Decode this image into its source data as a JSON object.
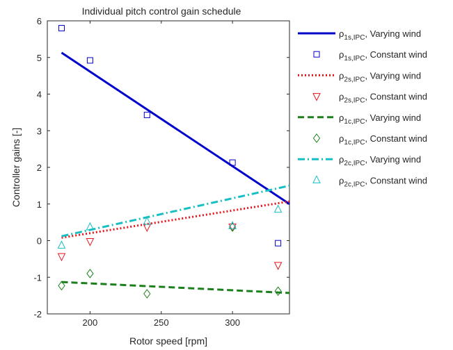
{
  "chart_data": {
    "type": "line",
    "title": "Individual pitch control gain schedule",
    "xlabel": "Rotor speed [rpm]",
    "ylabel": "Controller gains [-]",
    "xlim": [
      170,
      340
    ],
    "ylim": [
      -2,
      6
    ],
    "xticks": [
      "200",
      "250",
      "300"
    ],
    "xtick_values": [
      200,
      250,
      300
    ],
    "yticks": [
      "-2",
      "-1",
      "0",
      "1",
      "2",
      "3",
      "4",
      "5",
      "6"
    ],
    "ytick_values": [
      -2,
      -1,
      0,
      1,
      2,
      3,
      4,
      5,
      6
    ],
    "grid": false,
    "legend_position": "outside-right",
    "series": [
      {
        "symbol": "ρ",
        "subscript": "1s,IPC",
        "suffix": ", Varying wind",
        "kind": "line",
        "dash": "solid",
        "color": "#0000CC",
        "x": [
          180,
          340
        ],
        "y": [
          5.13,
          1.0
        ]
      },
      {
        "symbol": "ρ",
        "subscript": "1s,IPC",
        "suffix": ", Constant wind",
        "kind": "marker",
        "marker": "square",
        "color": "#0000CC",
        "x": [
          180,
          200,
          240,
          300,
          332
        ],
        "y": [
          5.8,
          4.92,
          3.43,
          2.13,
          -0.07
        ]
      },
      {
        "symbol": "ρ",
        "subscript": "2s,IPC",
        "suffix": ", Varying wind",
        "kind": "line",
        "dash": "dotted",
        "color": "#E8141B",
        "x": [
          180,
          340
        ],
        "y": [
          0.08,
          1.07
        ]
      },
      {
        "symbol": "ρ",
        "subscript": "2s,IPC",
        "suffix": ", Constant wind",
        "kind": "marker",
        "marker": "triangle-down",
        "color": "#E8141B",
        "x": [
          180,
          200,
          240,
          300,
          332
        ],
        "y": [
          -0.43,
          -0.02,
          0.37,
          0.38,
          -0.67
        ]
      },
      {
        "symbol": "ρ",
        "subscript": "1c,IPC",
        "suffix": ", Varying wind",
        "kind": "line",
        "dash": "dashed",
        "color": "#1B7F1B",
        "x": [
          180,
          340
        ],
        "y": [
          -1.13,
          -1.43
        ]
      },
      {
        "symbol": "ρ",
        "subscript": "1c,IPC",
        "suffix": ", Constant wind",
        "kind": "marker",
        "marker": "diamond",
        "color": "#1B7F1B",
        "x": [
          180,
          200,
          240,
          300,
          332
        ],
        "y": [
          -1.23,
          -0.9,
          -1.45,
          0.37,
          -1.38
        ]
      },
      {
        "symbol": "ρ",
        "subscript": "2c,IPC",
        "suffix": ", Varying wind",
        "kind": "line",
        "dash": "dashdot",
        "color": "#17BFC4",
        "x": [
          180,
          340
        ],
        "y": [
          0.12,
          1.5
        ]
      },
      {
        "symbol": "ρ",
        "subscript": "2c,IPC",
        "suffix": ", Constant wind",
        "kind": "marker",
        "marker": "triangle-up",
        "color": "#17BFC4",
        "x": [
          180,
          200,
          240,
          300,
          332
        ],
        "y": [
          -0.13,
          0.37,
          0.52,
          0.4,
          0.85
        ]
      }
    ]
  }
}
